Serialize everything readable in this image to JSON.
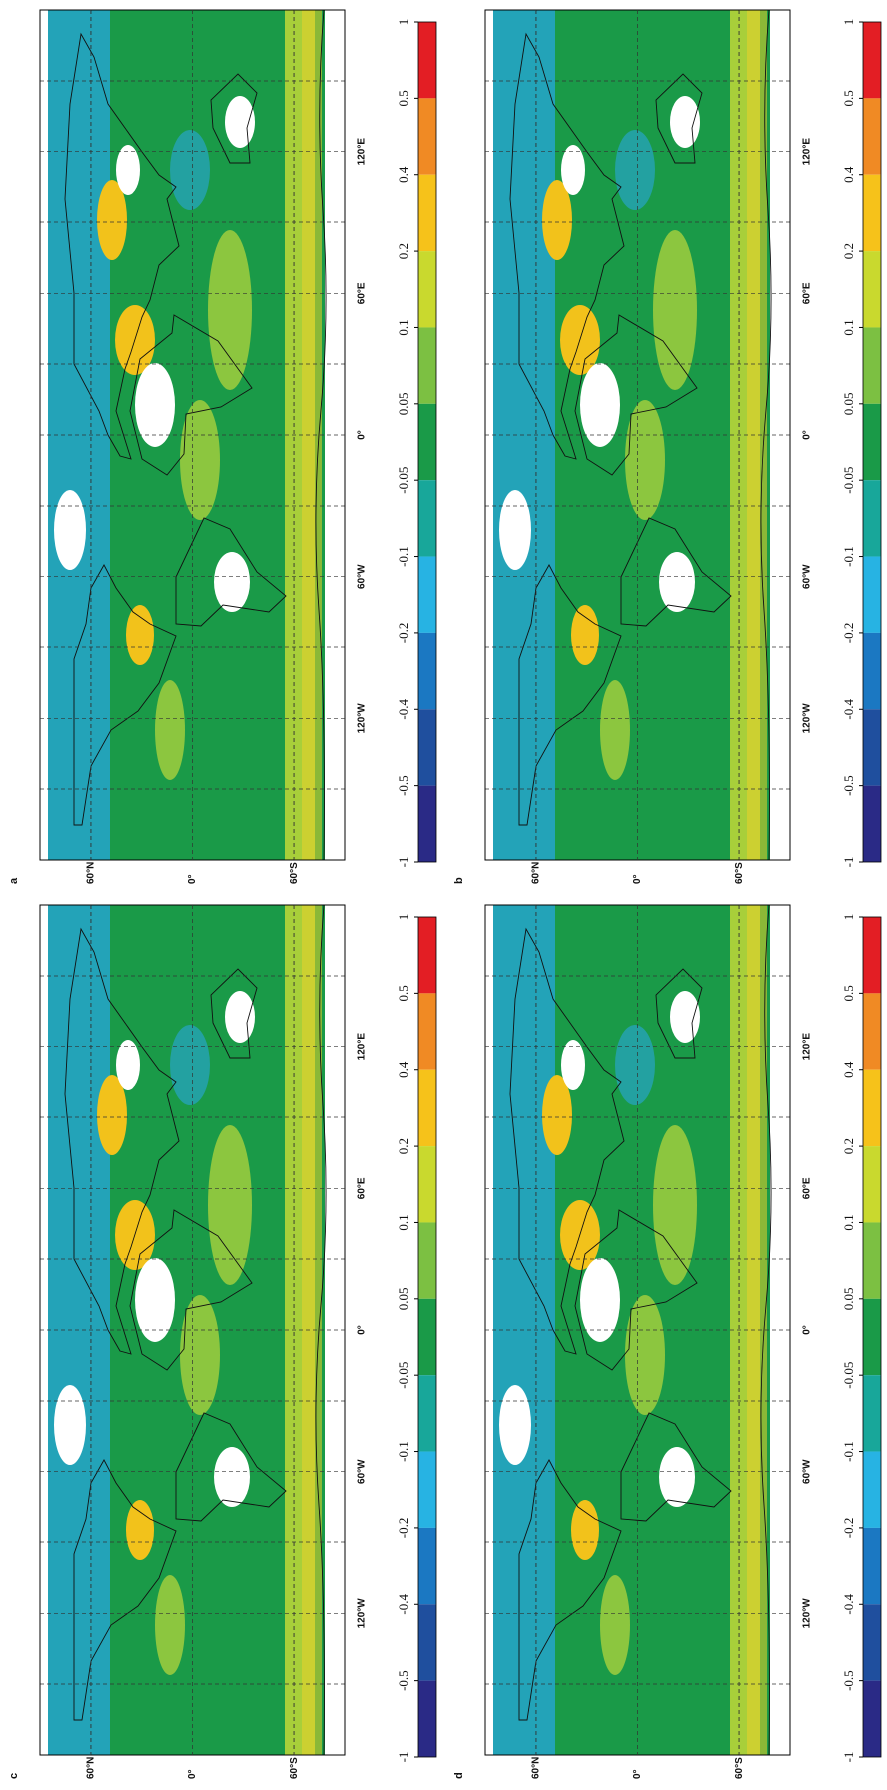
{
  "panels": [
    {
      "label": "a",
      "lat_ticks": [
        {
          "value": 60,
          "label": "60°N"
        },
        {
          "value": 0,
          "label": "0°"
        },
        {
          "value": -60,
          "label": "60°S"
        }
      ],
      "lon_ticks": [
        {
          "value": -120,
          "label": "120°W"
        },
        {
          "value": -60,
          "label": "60°W"
        },
        {
          "value": 0,
          "label": "0°"
        },
        {
          "value": 60,
          "label": "60°E"
        },
        {
          "value": 120,
          "label": "120°E"
        }
      ],
      "colorbar": {
        "ticks": [
          1,
          0.5,
          0.4,
          0.2,
          0.1,
          0.05,
          -0.05,
          -0.1,
          -0.2,
          -0.4,
          -0.5,
          -1
        ],
        "colors": [
          "#e31e24",
          "#f08a24",
          "#f6c21a",
          "#c9d92e",
          "#7cc042",
          "#1a9a48",
          "#18a79a",
          "#27b3e3",
          "#1b78c2",
          "#1f4f9e",
          "#2a2a86"
        ]
      }
    },
    {
      "label": "b",
      "lat_ticks": [
        {
          "value": 60,
          "label": "60°N"
        },
        {
          "value": 0,
          "label": "0°"
        },
        {
          "value": -60,
          "label": "60°S"
        }
      ],
      "lon_ticks": [
        {
          "value": -120,
          "label": "120°W"
        },
        {
          "value": -60,
          "label": "60°W"
        },
        {
          "value": 0,
          "label": "0°"
        },
        {
          "value": 60,
          "label": "60°E"
        },
        {
          "value": 120,
          "label": "120°E"
        }
      ],
      "colorbar": {
        "ticks": [
          1,
          0.5,
          0.4,
          0.2,
          0.1,
          0.05,
          -0.05,
          -0.1,
          -0.2,
          -0.4,
          -0.5,
          -1
        ],
        "colors": [
          "#e31e24",
          "#f08a24",
          "#f6c21a",
          "#c9d92e",
          "#7cc042",
          "#1a9a48",
          "#18a79a",
          "#27b3e3",
          "#1b78c2",
          "#1f4f9e",
          "#2a2a86"
        ]
      }
    },
    {
      "label": "c",
      "lat_ticks": [
        {
          "value": 60,
          "label": "60°N"
        },
        {
          "value": 0,
          "label": "0°"
        },
        {
          "value": -60,
          "label": "60°S"
        }
      ],
      "lon_ticks": [
        {
          "value": -120,
          "label": "120°W"
        },
        {
          "value": -60,
          "label": "60°W"
        },
        {
          "value": 0,
          "label": "0°"
        },
        {
          "value": 60,
          "label": "60°E"
        },
        {
          "value": 120,
          "label": "120°E"
        }
      ],
      "colorbar": {
        "ticks": [
          1,
          0.5,
          0.4,
          0.2,
          0.1,
          0.05,
          -0.05,
          -0.1,
          -0.2,
          -0.4,
          -0.5,
          -1
        ],
        "colors": [
          "#e31e24",
          "#f08a24",
          "#f6c21a",
          "#c9d92e",
          "#7cc042",
          "#1a9a48",
          "#18a79a",
          "#27b3e3",
          "#1b78c2",
          "#1f4f9e",
          "#2a2a86"
        ]
      }
    },
    {
      "label": "d",
      "lat_ticks": [
        {
          "value": 60,
          "label": "60°N"
        },
        {
          "value": 0,
          "label": "0°"
        },
        {
          "value": -60,
          "label": "60°S"
        }
      ],
      "lon_ticks": [
        {
          "value": -120,
          "label": "120°W"
        },
        {
          "value": -60,
          "label": "60°W"
        },
        {
          "value": 0,
          "label": "0°"
        },
        {
          "value": 60,
          "label": "60°E"
        },
        {
          "value": 120,
          "label": "120°E"
        }
      ],
      "colorbar": {
        "ticks": [
          1,
          0.5,
          0.4,
          0.2,
          0.1,
          0.05,
          -0.05,
          -0.1,
          -0.2,
          -0.4,
          -0.5,
          -1
        ],
        "colors": [
          "#e31e24",
          "#f08a24",
          "#f6c21a",
          "#c9d92e",
          "#7cc042",
          "#1a9a48",
          "#18a79a",
          "#27b3e3",
          "#1b78c2",
          "#1f4f9e",
          "#2a2a86"
        ]
      }
    }
  ]
}
